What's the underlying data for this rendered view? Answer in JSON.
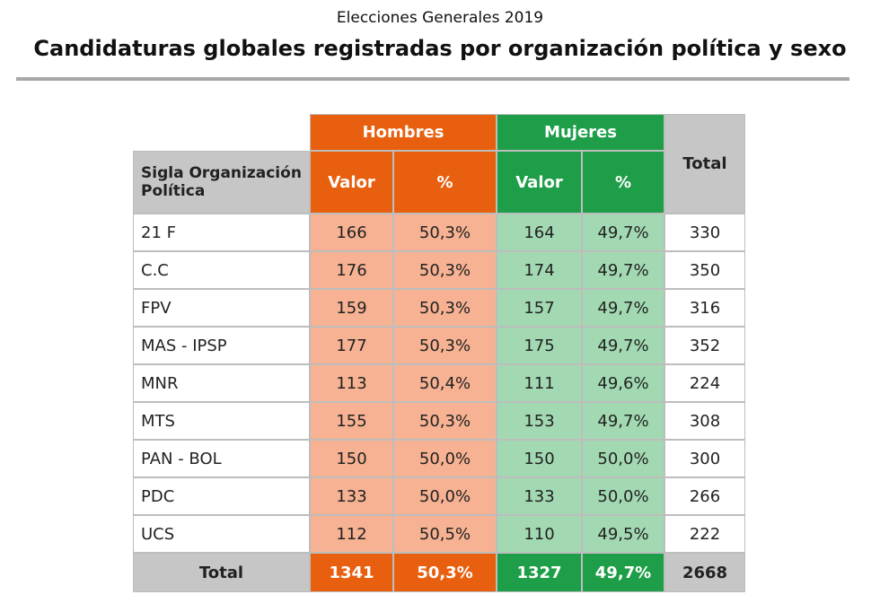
{
  "header": {
    "subtitle": "Elecciones Generales 2019",
    "title": "Candidaturas globales registradas por organización política y sexo"
  },
  "table": {
    "groups": [
      "Hombres",
      "Mujeres"
    ],
    "columns": [
      "Sigla Organización Política",
      "Valor",
      "%",
      "Valor",
      "%",
      "Total"
    ],
    "rows": [
      [
        "21 F",
        166,
        "50,3%",
        164,
        "49,7%",
        330
      ],
      [
        "C.C",
        176,
        "50,3%",
        174,
        "49,7%",
        350
      ],
      [
        "FPV",
        159,
        "50,3%",
        157,
        "49,7%",
        316
      ],
      [
        "MAS - IPSP",
        177,
        "50,3%",
        175,
        "49,7%",
        352
      ],
      [
        "MNR",
        113,
        "50,4%",
        111,
        "49,6%",
        224
      ],
      [
        "MTS",
        155,
        "50,3%",
        153,
        "49,7%",
        308
      ],
      [
        "PAN - BOL",
        150,
        "50,0%",
        150,
        "50,0%",
        300
      ],
      [
        "PDC",
        133,
        "50,0%",
        133,
        "50,0%",
        266
      ],
      [
        "UCS",
        112,
        "50,5%",
        110,
        "49,5%",
        222
      ]
    ],
    "total": [
      "Total",
      1341,
      "50,3%",
      1327,
      "49,7%",
      2668
    ]
  }
}
